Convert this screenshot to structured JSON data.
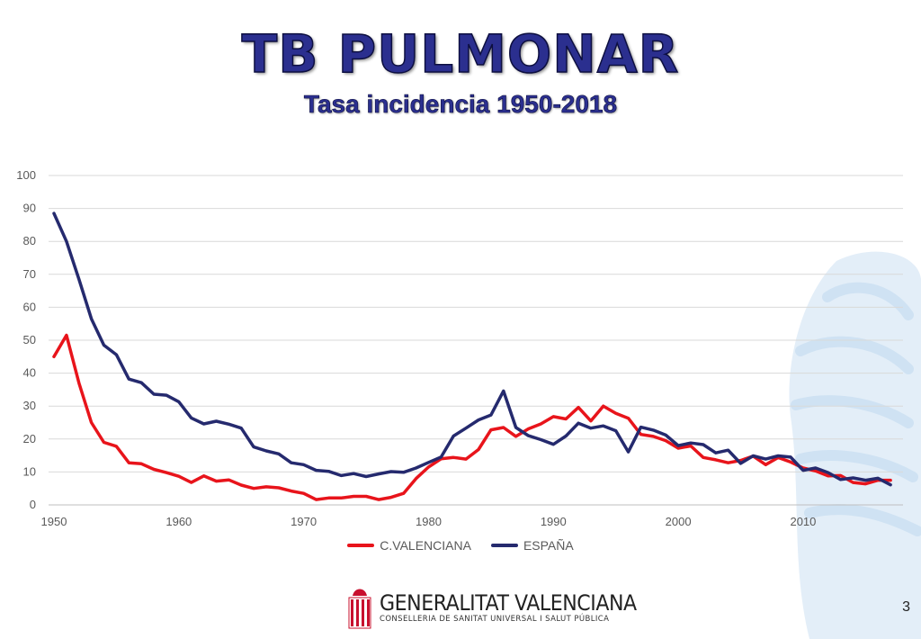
{
  "slide": {
    "title": "TB PULMONAR",
    "subtitle": "Tasa incidencia 1950-2018",
    "page_number": "3"
  },
  "logo": {
    "name": "GENERALITAT VALENCIANA",
    "department": "CONSELLERIA DE SANITAT UNIVERSAL I SALUT PÚBLICA"
  },
  "chart_data": {
    "type": "line",
    "title": "",
    "xlabel": "",
    "ylabel": "",
    "xlim": [
      1950,
      2018
    ],
    "ylim": [
      0,
      100
    ],
    "x_ticks": [
      1950,
      1960,
      1970,
      1980,
      1990,
      2000,
      2010
    ],
    "y_ticks": [
      0,
      10,
      20,
      30,
      40,
      50,
      60,
      70,
      80,
      90,
      100
    ],
    "grid": "horizontal",
    "legend": "bottom",
    "x": [
      1950,
      1951,
      1952,
      1953,
      1954,
      1955,
      1956,
      1957,
      1958,
      1959,
      1960,
      1961,
      1962,
      1963,
      1964,
      1965,
      1966,
      1967,
      1968,
      1969,
      1970,
      1971,
      1972,
      1973,
      1974,
      1975,
      1976,
      1977,
      1978,
      1979,
      1980,
      1981,
      1982,
      1983,
      1984,
      1985,
      1986,
      1987,
      1988,
      1989,
      1990,
      1991,
      1992,
      1993,
      1994,
      1995,
      1996,
      1997,
      1998,
      1999,
      2000,
      2001,
      2002,
      2003,
      2004,
      2005,
      2006,
      2007,
      2008,
      2009,
      2010,
      2011,
      2012,
      2013,
      2014,
      2015,
      2016,
      2017
    ],
    "series": [
      {
        "name": "C.VALENCIANA",
        "color": "#e8141b",
        "values": [
          45,
          51.5,
          37,
          25,
          19,
          17.8,
          12.8,
          12.5,
          10.8,
          9.8,
          8.7,
          6.8,
          8.8,
          7.2,
          7.6,
          6,
          5,
          5.5,
          5.2,
          4.2,
          3.5,
          1.6,
          2.1,
          2.1,
          2.6,
          2.6,
          1.6,
          2.3,
          3.5,
          8,
          11.5,
          14,
          14.4,
          13.9,
          16.8,
          22.8,
          23.5,
          20.8,
          23.1,
          24.6,
          26.8,
          26.1,
          29.6,
          25.5,
          30,
          27.8,
          26.3,
          21.4,
          20.8,
          19.5,
          17.2,
          17.9,
          14.4,
          13.7,
          12.8,
          13.5,
          14.8,
          12.2,
          14.4,
          13,
          11.2,
          10.3,
          8.8,
          8.9,
          6.8,
          6.4,
          7.5,
          7.5
        ]
      },
      {
        "name": "ESPAÑA",
        "color": "#252a6e",
        "values": [
          88.5,
          80,
          68.5,
          56.5,
          48.5,
          45.6,
          38.2,
          37.1,
          33.6,
          33.3,
          31.3,
          26.4,
          24.6,
          25.4,
          24.5,
          23.3,
          17.6,
          16.4,
          15.5,
          12.8,
          12.2,
          10.5,
          10.2,
          8.9,
          9.5,
          8.6,
          9.4,
          10.1,
          9.9,
          11.2,
          12.9,
          14.5,
          20.9,
          23.3,
          25.8,
          27.3,
          34.6,
          23.5,
          21,
          19.8,
          18.4,
          20.9,
          24.8,
          23.3,
          24,
          22.5,
          16.1,
          23.6,
          22.7,
          21.2,
          18,
          18.8,
          18.3,
          15.8,
          16.6,
          12.6,
          14.9,
          13.9,
          14.9,
          14.5,
          10.5,
          11.2,
          9.8,
          7.7,
          8.2,
          7.5,
          8.1,
          6.1
        ]
      }
    ]
  }
}
